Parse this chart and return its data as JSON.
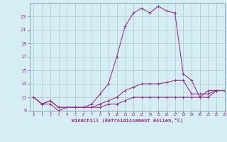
{
  "x": [
    0,
    1,
    2,
    3,
    4,
    5,
    6,
    7,
    8,
    9,
    10,
    11,
    12,
    13,
    14,
    15,
    16,
    17,
    18,
    19,
    20,
    21,
    22,
    23
  ],
  "line1": [
    11,
    10,
    10,
    9,
    9.5,
    9.5,
    9.5,
    9.5,
    9.5,
    10,
    10,
    10.5,
    11,
    11,
    11,
    11,
    11,
    11,
    11,
    11,
    11,
    11,
    12,
    12
  ],
  "line2": [
    11,
    10,
    10.5,
    9.5,
    9.5,
    9.5,
    9.5,
    9.5,
    10,
    10.5,
    11,
    12,
    12.5,
    13,
    13,
    13,
    13.2,
    13.5,
    13.5,
    11.5,
    11.5,
    11.5,
    12,
    12
  ],
  "line3": [
    11,
    10,
    10.5,
    9.5,
    9.5,
    9.5,
    9.5,
    10,
    11.5,
    13,
    17,
    21.5,
    23.5,
    24.2,
    23.5,
    24.5,
    23.8,
    23.5,
    14.5,
    null,
    null,
    null,
    null,
    null
  ],
  "line4": [
    null,
    null,
    null,
    null,
    null,
    null,
    null,
    null,
    null,
    null,
    null,
    null,
    null,
    null,
    null,
    null,
    null,
    null,
    14.5,
    13.5,
    11,
    12,
    12,
    12
  ],
  "ylim": [
    9,
    25
  ],
  "xlim": [
    -0.5,
    23
  ],
  "yticks": [
    9,
    11,
    13,
    15,
    17,
    19,
    21,
    23
  ],
  "xticks": [
    0,
    1,
    2,
    3,
    4,
    5,
    6,
    7,
    8,
    9,
    10,
    11,
    12,
    13,
    14,
    15,
    16,
    17,
    18,
    19,
    20,
    21,
    22,
    23
  ],
  "xlabel": "Windchill (Refroidissement éolien,°C)",
  "line_color": "#993399",
  "bg_color": "#d4eef4",
  "grid_color": "#b0c8d0",
  "marker": "+",
  "linewidth": 0.8,
  "markersize": 3
}
